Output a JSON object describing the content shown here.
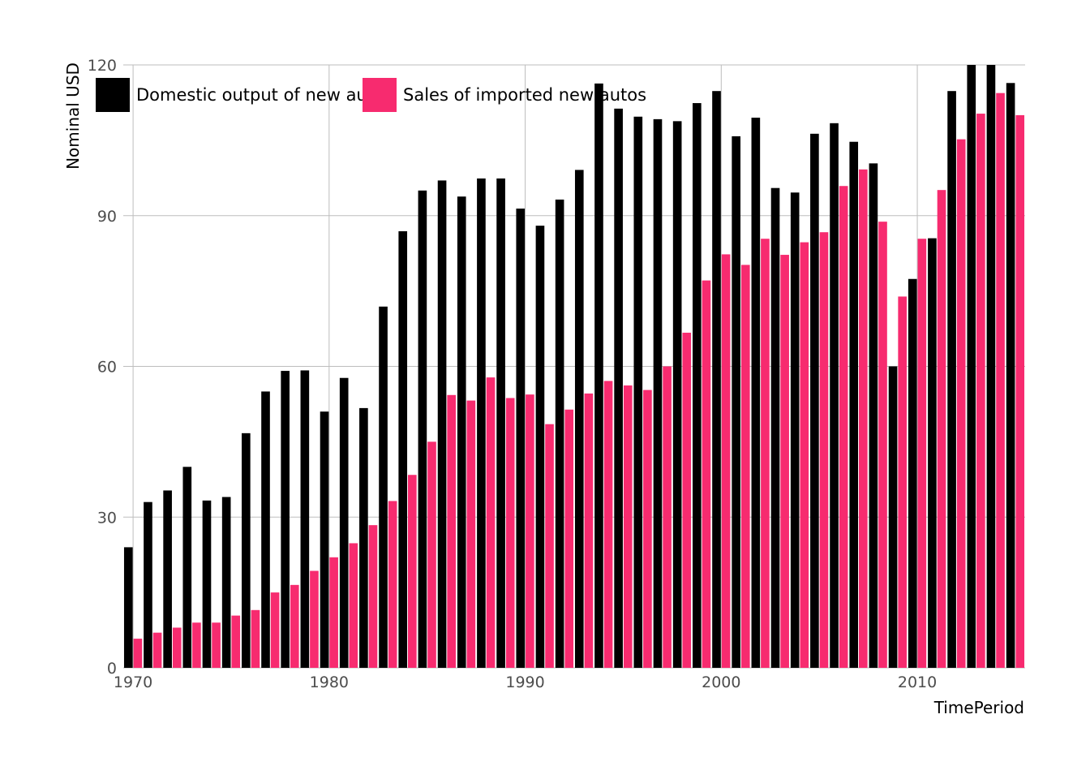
{
  "chart_data": {
    "type": "bar",
    "title": "",
    "xlabel": "TimePeriod",
    "ylabel": "Nominal USD",
    "ylim": [
      0,
      120
    ],
    "yticks": [
      0,
      30,
      60,
      90,
      120
    ],
    "xticks": [
      1970,
      1980,
      1990,
      2000,
      2010
    ],
    "grid": true,
    "legend_position": "top-left",
    "x": [
      1970,
      1971,
      1972,
      1973,
      1974,
      1975,
      1976,
      1977,
      1978,
      1979,
      1980,
      1981,
      1982,
      1983,
      1984,
      1985,
      1986,
      1987,
      1988,
      1989,
      1990,
      1991,
      1992,
      1993,
      1994,
      1995,
      1996,
      1997,
      1998,
      1999,
      2000,
      2001,
      2002,
      2003,
      2004,
      2005,
      2006,
      2007,
      2008,
      2009,
      2010,
      2011,
      2012,
      2013,
      2014,
      2015
    ],
    "series": [
      {
        "name": "Domestic output of new autos",
        "color": "#000000",
        "values": [
          24,
          33,
          35.3,
          40,
          33.3,
          34,
          46.7,
          55,
          59.1,
          59.2,
          51,
          57.7,
          51.7,
          71.9,
          86.9,
          95,
          97,
          93.8,
          97.4,
          97.4,
          91.4,
          88,
          93.2,
          99.1,
          116.3,
          111.3,
          109.7,
          109.2,
          108.8,
          112.4,
          114.8,
          105.8,
          109.5,
          95.5,
          94.6,
          106.3,
          108.4,
          104.7,
          100.4,
          60,
          77.4,
          85.5,
          114.8,
          121.5,
          120.1,
          116.4
        ]
      },
      {
        "name": "Sales of imported new autos",
        "color": "#f72b6f",
        "values": [
          5.8,
          7,
          8,
          9,
          9,
          10.4,
          11.5,
          15,
          16.5,
          19.3,
          22,
          24.8,
          28.4,
          33.2,
          38.4,
          45,
          54.3,
          53.2,
          57.8,
          53.7,
          54.4,
          48.5,
          51.4,
          54.6,
          57.1,
          56.2,
          55.3,
          60,
          66.7,
          77.1,
          82.3,
          80.2,
          85.4,
          82.2,
          84.7,
          86.7,
          95.9,
          99.2,
          88.8,
          73.9,
          85.4,
          95.1,
          105.2,
          110.3,
          114.4,
          110
        ]
      }
    ]
  }
}
